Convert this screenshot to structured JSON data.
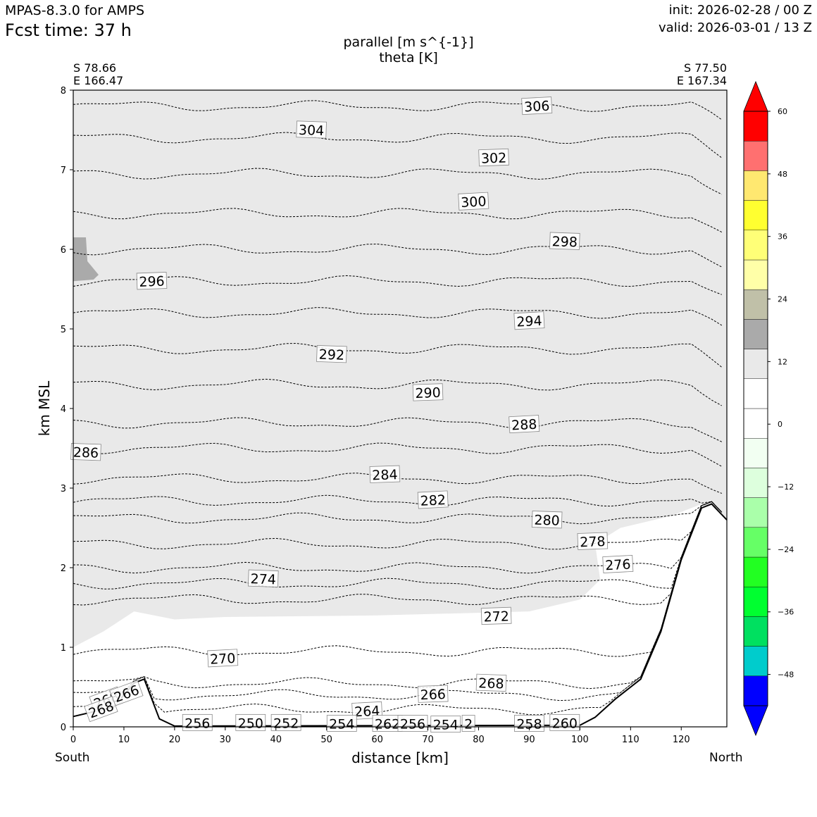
{
  "header": {
    "model": "MPAS-8.3.0 for AMPS",
    "fcst_time": "Fcst time:   37 h",
    "init": "init: 2026-02-28 / 00 Z",
    "valid": "valid: 2026-03-01 / 13 Z"
  },
  "endpoints": {
    "left_lat": "S 78.66",
    "left_lon": "E 166.47",
    "right_lat": "S 77.50",
    "right_lon": "E 167.34",
    "south": "South",
    "north": "North"
  },
  "colors": {
    "background": "#ffffff",
    "wind_0_12": "#e9e9e9",
    "wind_12_18": "#aaaaaa",
    "terrain": "#ffffff",
    "contour": "#000000"
  },
  "chart_data": {
    "type": "cross-section",
    "title": "parallel [m s^{-1}]",
    "subtitle": "theta [K]",
    "xlabel": "distance [km]",
    "ylabel": "km MSL",
    "xlim": [
      0,
      129
    ],
    "ylim": [
      0,
      8
    ],
    "xticks": [
      "0",
      "10",
      "20",
      "30",
      "40",
      "50",
      "60",
      "70",
      "80",
      "90",
      "100",
      "110",
      "120"
    ],
    "yticks": [
      "0",
      "1",
      "2",
      "3",
      "4",
      "5",
      "6",
      "7",
      "8"
    ],
    "colorbar": {
      "levels": [
        -54,
        -48,
        -42,
        -36,
        -30,
        -24,
        -18,
        -12,
        -6,
        0,
        6,
        12,
        18,
        24,
        30,
        36,
        42,
        48,
        54,
        60
      ],
      "colors": [
        "#0000ff",
        "#00cccc",
        "#00e060",
        "#00ff30",
        "#22ff22",
        "#66ff66",
        "#aaffaa",
        "#ddffdd",
        "#f2fff2",
        "#ffffff",
        "#ffffff",
        "#e9e9e9",
        "#aaaaaa",
        "#c0c0a8",
        "#ffffa8",
        "#ffff77",
        "#ffff30",
        "#ffe870",
        "#ff7070",
        "#ff0000"
      ],
      "tick_labels": [
        "60",
        "48",
        "36",
        "24",
        "12",
        "0",
        "−12",
        "−24",
        "−36",
        "−48"
      ],
      "extend": "both"
    },
    "theta_contours": [
      {
        "label": "306",
        "y_km": 7.8
      },
      {
        "label": "304",
        "y_km": 7.4
      },
      {
        "label": "302",
        "y_km": 6.95
      },
      {
        "label": "300",
        "y_km": 6.45
      },
      {
        "label": "298",
        "y_km": 6.0
      },
      {
        "label": "296",
        "y_km": 5.6
      },
      {
        "label": "294",
        "y_km": 5.2
      },
      {
        "label": "292",
        "y_km": 4.75
      },
      {
        "label": "290",
        "y_km": 4.3
      },
      {
        "label": "288",
        "y_km": 3.82
      },
      {
        "label": "286",
        "y_km": 3.5
      },
      {
        "label": "284",
        "y_km": 3.12
      },
      {
        "label": "282",
        "y_km": 2.84
      },
      {
        "label": "280",
        "y_km": 2.62
      },
      {
        "label": "278",
        "y_km": 2.3
      },
      {
        "label": "276",
        "y_km": 2.0
      },
      {
        "label": "274",
        "y_km": 1.8
      },
      {
        "label": "272",
        "y_km": 1.6
      },
      {
        "label": "270",
        "y_km": 0.95
      },
      {
        "label": "268",
        "y_km": 0.55
      },
      {
        "label": "266",
        "y_km": 0.4
      },
      {
        "label": "264",
        "y_km": 0.22
      }
    ],
    "surface_labels": [
      "268",
      "266",
      "268",
      "256",
      "250",
      "252",
      "254",
      "262",
      "256",
      "254",
      "2",
      "258",
      "260"
    ],
    "terrain_km": [
      [
        0,
        0.13
      ],
      [
        8,
        0.25
      ],
      [
        12,
        0.55
      ],
      [
        14,
        0.6
      ],
      [
        17,
        0.1
      ],
      [
        20,
        0.01
      ],
      [
        100,
        0.02
      ],
      [
        103,
        0.12
      ],
      [
        107,
        0.35
      ],
      [
        112,
        0.6
      ],
      [
        116,
        1.2
      ],
      [
        120,
        2.1
      ],
      [
        124,
        2.75
      ],
      [
        126,
        2.8
      ],
      [
        129,
        2.6
      ]
    ]
  }
}
